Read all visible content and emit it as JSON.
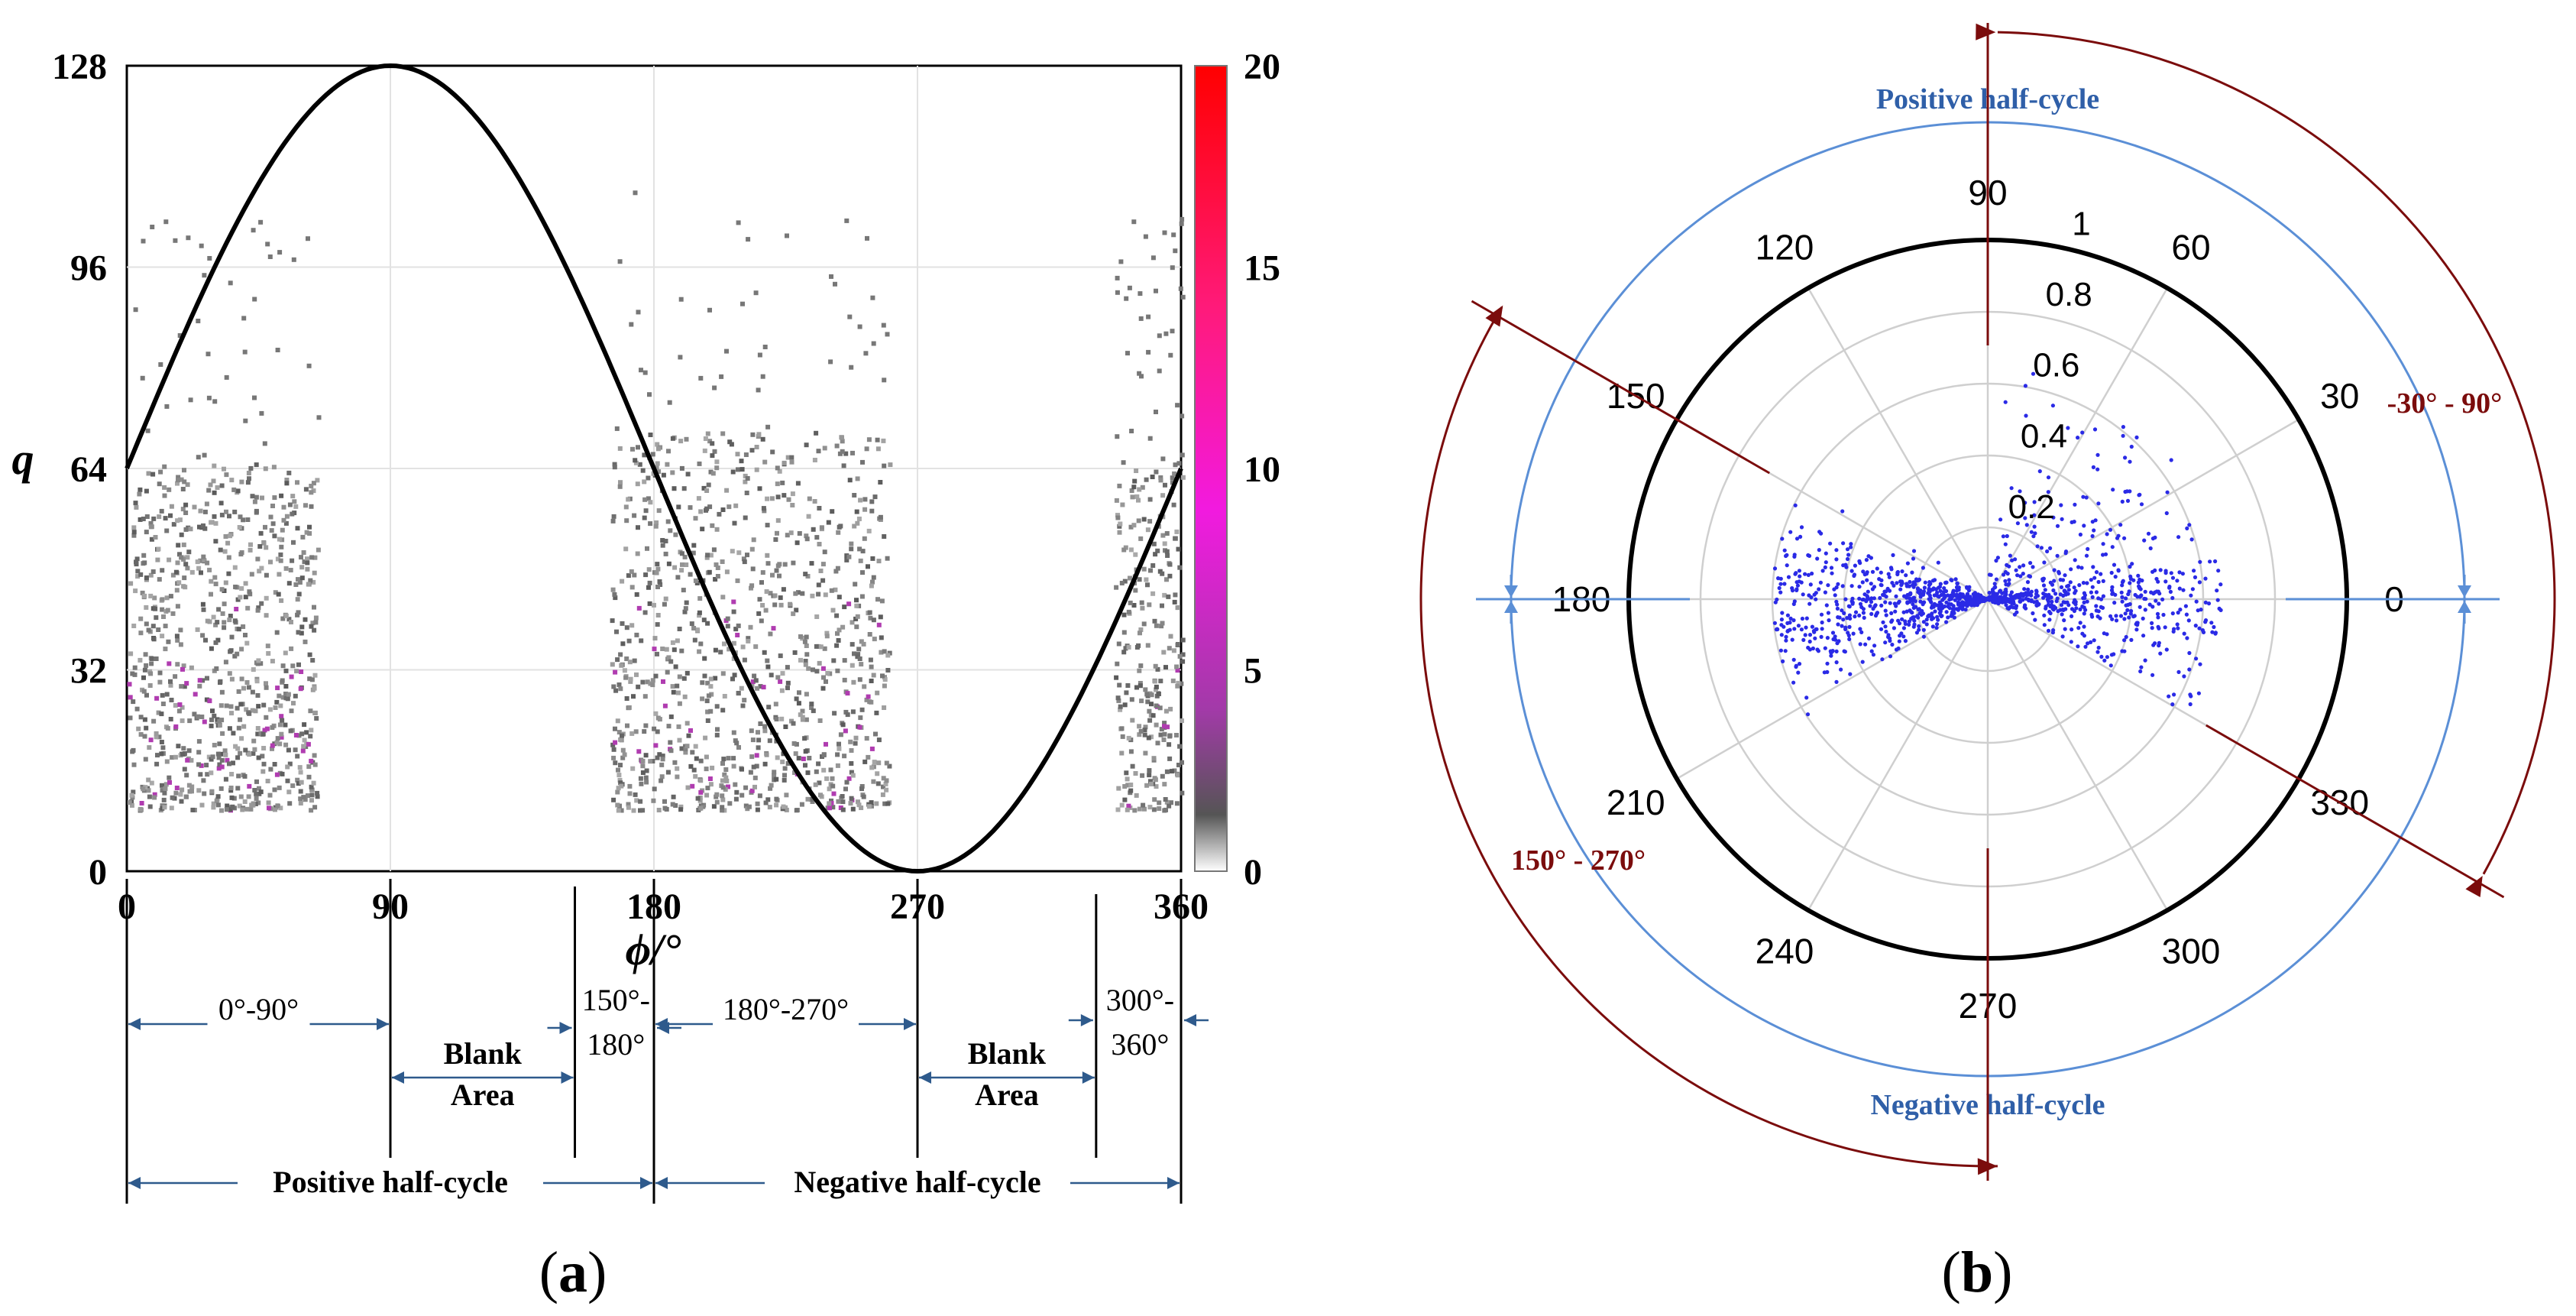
{
  "chart_data": [
    {
      "panel": "a",
      "type": "heatmap",
      "title": "",
      "xlabel": "ϕ/°",
      "ylabel": "q",
      "xlim": [
        0,
        360
      ],
      "ylim": [
        0,
        128
      ],
      "x_ticks": [
        "0",
        "90",
        "180",
        "270",
        "360"
      ],
      "y_ticks": [
        "0",
        "32",
        "64",
        "96",
        "128"
      ],
      "colorbar": {
        "range": [
          0,
          20
        ],
        "ticks": [
          "0",
          "5",
          "10",
          "15",
          "20"
        ]
      },
      "reference_curve": {
        "name": "sine",
        "amplitude": 64,
        "offset": 64
      },
      "clusters": [
        {
          "x": [
            0,
            65
          ],
          "y": [
            10,
            65
          ],
          "label": "0°-90°"
        },
        {
          "x": [
            165,
            260
          ],
          "y": [
            10,
            70
          ],
          "label": "180°-270°"
        },
        {
          "x": [
            337,
            360
          ],
          "y": [
            10,
            64
          ],
          "label": "300°-360°"
        }
      ],
      "annotations": {
        "segments": [
          {
            "from": 0,
            "to": 90,
            "label": "0°-90°"
          },
          {
            "from": 90,
            "to": 153,
            "label_lines": [
              "Blank",
              "Area"
            ]
          },
          {
            "from": 153,
            "to": 180,
            "label_lines": [
              "150°-",
              "180°"
            ]
          },
          {
            "from": 180,
            "to": 270,
            "label": "180°-270°"
          },
          {
            "from": 270,
            "to": 331,
            "label_lines": [
              "Blank",
              "Area"
            ]
          },
          {
            "from": 331,
            "to": 360,
            "label_lines": [
              "300°-",
              "360°"
            ]
          }
        ],
        "half_cycles": [
          {
            "from": 0,
            "to": 180,
            "label": "Positive half-cycle"
          },
          {
            "from": 180,
            "to": 360,
            "label": "Negative half-cycle"
          }
        ]
      },
      "caption_letter": "a"
    },
    {
      "panel": "b",
      "type": "scatter",
      "coordinate_system": "polar",
      "angle_ticks": [
        "0",
        "30",
        "60",
        "90",
        "120",
        "150",
        "180",
        "210",
        "240",
        "270",
        "300",
        "330"
      ],
      "radius_ticks": [
        "0.2",
        "0.4",
        "0.6",
        "0.8",
        "1"
      ],
      "rlim": [
        0,
        1
      ],
      "point_color": "#2a2ae6",
      "clusters": [
        {
          "angle_range": [
            150,
            230
          ],
          "radius_range": [
            0,
            0.6
          ]
        },
        {
          "angle_range": [
            -30,
            90
          ],
          "radius_range": [
            0,
            0.65
          ]
        }
      ],
      "labels": {
        "positive": "Positive half-cycle",
        "negative": "Negative half-cycle",
        "range_pos": "-30° - 90°",
        "range_neg": "150° - 270°"
      },
      "caption_letter": "b"
    }
  ],
  "colors": {
    "axis": "#000000",
    "dark_red": "#7b0c0c",
    "blue_line": "#5b8fd6",
    "blue_text": "#2f5fa8",
    "annot_blue": "#2e5a8c"
  }
}
